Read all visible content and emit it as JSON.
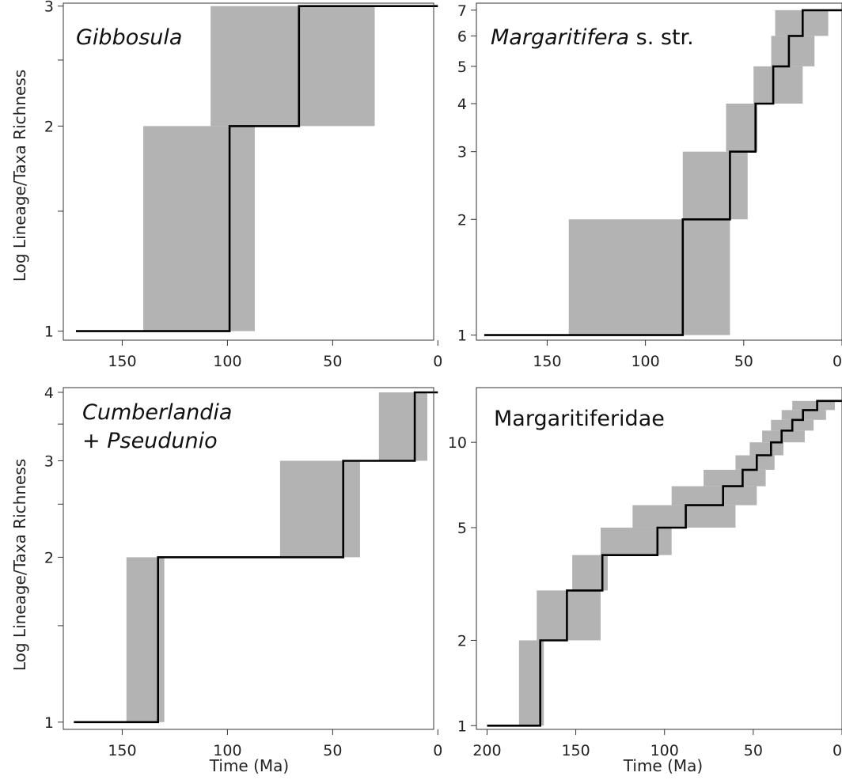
{
  "figure": {
    "xlabel": "Time (Ma)",
    "ylabel": "Log Lineage/Taxa Richness"
  },
  "chart_data": [
    {
      "type": "line",
      "scale": "log",
      "title_lines": [
        [
          {
            "text": "Gibbosula",
            "italic": true
          }
        ]
      ],
      "xlabel": "",
      "ylabel": "Log Lineage/Taxa Richness",
      "xlim": [
        0,
        175
      ],
      "ylim": [
        1,
        3
      ],
      "xticks": [
        150,
        100,
        50,
        0
      ],
      "yticks": [
        1,
        2,
        3
      ],
      "step_line": [
        [
          172,
          1
        ],
        [
          99,
          1
        ],
        [
          99,
          2
        ],
        [
          66,
          2
        ],
        [
          66,
          3
        ],
        [
          0,
          3
        ]
      ],
      "ci_boxes": [
        {
          "x": [
            87,
            140
          ],
          "y": [
            1,
            2
          ]
        },
        {
          "x": [
            30,
            108
          ],
          "y": [
            2,
            3
          ]
        }
      ],
      "colors": {
        "line": "#000000",
        "ci": "#b3b3b3"
      }
    },
    {
      "type": "line",
      "scale": "log",
      "title_lines": [
        [
          {
            "text": "Margaritifera",
            "italic": true
          },
          {
            "text": " s. str.",
            "italic": false
          }
        ]
      ],
      "xlabel": "",
      "ylabel": "",
      "xlim": [
        0,
        185
      ],
      "ylim": [
        1,
        7
      ],
      "xticks": [
        150,
        100,
        50,
        0
      ],
      "yticks": [
        1,
        2,
        3,
        4,
        5,
        6,
        7
      ],
      "step_line": [
        [
          182,
          1
        ],
        [
          81,
          1
        ],
        [
          81,
          2
        ],
        [
          57,
          2
        ],
        [
          57,
          3
        ],
        [
          44,
          3
        ],
        [
          44,
          4
        ],
        [
          35,
          4
        ],
        [
          35,
          5
        ],
        [
          27,
          5
        ],
        [
          27,
          6
        ],
        [
          20,
          6
        ],
        [
          20,
          7
        ],
        [
          0,
          7
        ]
      ],
      "ci_boxes": [
        {
          "x": [
            57,
            139
          ],
          "y": [
            1,
            2
          ]
        },
        {
          "x": [
            48,
            81
          ],
          "y": [
            2,
            3
          ]
        },
        {
          "x": [
            43,
            59
          ],
          "y": [
            3,
            4
          ]
        },
        {
          "x": [
            20,
            45
          ],
          "y": [
            4,
            5
          ]
        },
        {
          "x": [
            14,
            36
          ],
          "y": [
            5,
            6
          ]
        },
        {
          "x": [
            7,
            34
          ],
          "y": [
            6,
            7
          ]
        }
      ],
      "colors": {
        "line": "#000000",
        "ci": "#b3b3b3"
      }
    },
    {
      "type": "line",
      "scale": "log",
      "title_lines": [
        [
          {
            "text": "Cumberlandia",
            "italic": true
          }
        ],
        [
          {
            "text": "+ ",
            "italic": false
          },
          {
            "text": "Pseudunio",
            "italic": true
          }
        ]
      ],
      "xlabel": "Time (Ma)",
      "ylabel": "Log Lineage/Taxa Richness",
      "xlim": [
        0,
        176
      ],
      "ylim": [
        1,
        4
      ],
      "xticks": [
        150,
        100,
        50,
        0
      ],
      "yticks": [
        1,
        2,
        3,
        4
      ],
      "step_line": [
        [
          173,
          1
        ],
        [
          133,
          1
        ],
        [
          133,
          2
        ],
        [
          45,
          2
        ],
        [
          45,
          3
        ],
        [
          11,
          3
        ],
        [
          11,
          4
        ],
        [
          0,
          4
        ]
      ],
      "ci_boxes": [
        {
          "x": [
            130,
            148
          ],
          "y": [
            1,
            2
          ]
        },
        {
          "x": [
            37,
            75
          ],
          "y": [
            2,
            3
          ]
        },
        {
          "x": [
            5,
            28
          ],
          "y": [
            3,
            4
          ]
        }
      ],
      "colors": {
        "line": "#000000",
        "ci": "#b3b3b3"
      }
    },
    {
      "type": "line",
      "scale": "log",
      "title_lines": [
        [
          {
            "text": "Margaritiferidae",
            "italic": false
          }
        ]
      ],
      "xlabel": "Time (Ma)",
      "ylabel": "",
      "xlim": [
        0,
        205
      ],
      "ylim": [
        1,
        15
      ],
      "xticks": [
        200,
        150,
        100,
        50,
        0
      ],
      "yticks": [
        1,
        2,
        5,
        10
      ],
      "step_line": [
        [
          200,
          1
        ],
        [
          170,
          1
        ],
        [
          170,
          2
        ],
        [
          155,
          2
        ],
        [
          155,
          3
        ],
        [
          135,
          3
        ],
        [
          135,
          4
        ],
        [
          104,
          4
        ],
        [
          104,
          5
        ],
        [
          88,
          5
        ],
        [
          88,
          6
        ],
        [
          67,
          6
        ],
        [
          67,
          7
        ],
        [
          56,
          7
        ],
        [
          56,
          8
        ],
        [
          48,
          8
        ],
        [
          48,
          9
        ],
        [
          40,
          9
        ],
        [
          40,
          10
        ],
        [
          34,
          10
        ],
        [
          34,
          11
        ],
        [
          28,
          11
        ],
        [
          28,
          12
        ],
        [
          22,
          12
        ],
        [
          22,
          13
        ],
        [
          14,
          13
        ],
        [
          14,
          14
        ],
        [
          0,
          14
        ]
      ],
      "ci_boxes": [
        {
          "x": [
            168,
            182
          ],
          "y": [
            1,
            2
          ]
        },
        {
          "x": [
            136,
            172
          ],
          "y": [
            2,
            3
          ]
        },
        {
          "x": [
            132,
            152
          ],
          "y": [
            3,
            4
          ]
        },
        {
          "x": [
            96,
            136
          ],
          "y": [
            4,
            5
          ]
        },
        {
          "x": [
            60,
            118
          ],
          "y": [
            5,
            6
          ]
        },
        {
          "x": [
            48,
            96
          ],
          "y": [
            6,
            7
          ]
        },
        {
          "x": [
            43,
            78
          ],
          "y": [
            7,
            8
          ]
        },
        {
          "x": [
            38,
            60
          ],
          "y": [
            8,
            9
          ]
        },
        {
          "x": [
            33,
            52
          ],
          "y": [
            9,
            10
          ]
        },
        {
          "x": [
            21,
            45
          ],
          "y": [
            10,
            11
          ]
        },
        {
          "x": [
            16,
            40
          ],
          "y": [
            11,
            12
          ]
        },
        {
          "x": [
            9,
            34
          ],
          "y": [
            12,
            13
          ]
        },
        {
          "x": [
            4,
            28
          ],
          "y": [
            13,
            14
          ]
        }
      ],
      "colors": {
        "line": "#000000",
        "ci": "#b3b3b3"
      }
    }
  ]
}
